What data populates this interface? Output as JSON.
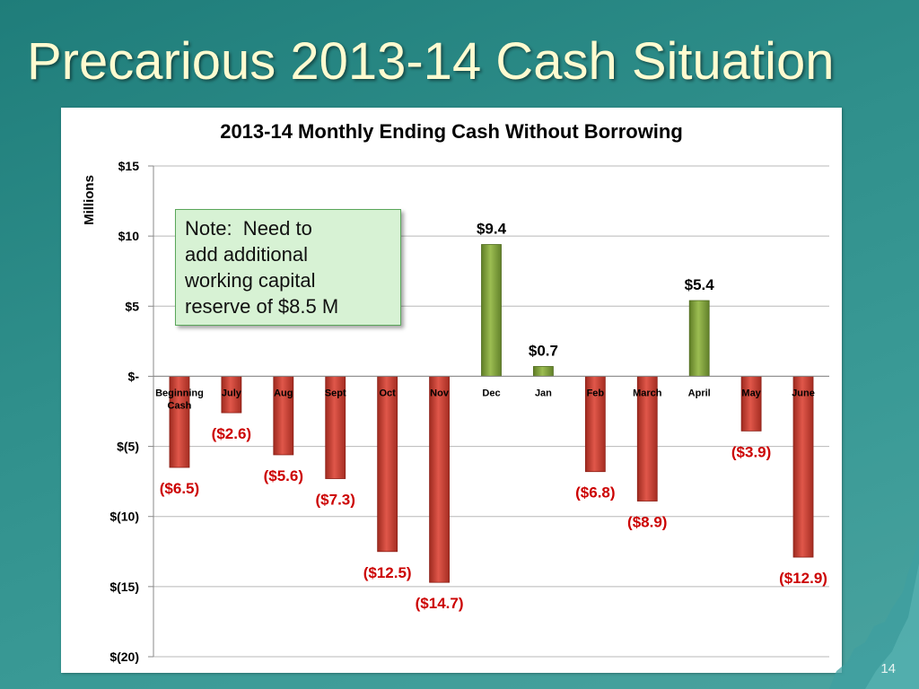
{
  "slide": {
    "title": "Precarious 2013-14 Cash Situation",
    "page_number": "14",
    "note": "Note:  Need to\nadd additional\nworking capital\nreserve of $8.5 M"
  },
  "colors": {
    "positive_bar": "#7a9a3a",
    "negative_bar": "#c0392b",
    "negative_label": "#cc0000",
    "positive_label": "#000000"
  },
  "chart_data": {
    "type": "bar",
    "title": "2013-14 Monthly Ending Cash Without Borrowing",
    "ylabel": "Millions",
    "xlabel": "",
    "ylim": [
      -20,
      15
    ],
    "y_ticks": [
      15,
      10,
      5,
      0,
      -5,
      -10,
      -15,
      -20
    ],
    "y_tick_labels": [
      "$15",
      "$10",
      "$5",
      "$-",
      "$(5)",
      "$(10)",
      "$(15)",
      "$(20)"
    ],
    "categories": [
      "Beginning Cash",
      "July",
      "Aug",
      "Sept",
      "Oct",
      "Nov",
      "Dec",
      "Jan",
      "Feb",
      "March",
      "April",
      "May",
      "June"
    ],
    "values": [
      -6.5,
      -2.6,
      -5.6,
      -7.3,
      -12.5,
      -14.7,
      9.4,
      0.7,
      -6.8,
      -8.9,
      5.4,
      -3.9,
      -12.9
    ],
    "data_labels": [
      "($6.5)",
      "($2.6)",
      "($5.6)",
      "($7.3)",
      "($12.5)",
      "($14.7)",
      "$9.4",
      "$0.7",
      "($6.8)",
      "($8.9)",
      "$5.4",
      "($3.9)",
      "($12.9)"
    ],
    "grid": true,
    "legend": "none"
  }
}
